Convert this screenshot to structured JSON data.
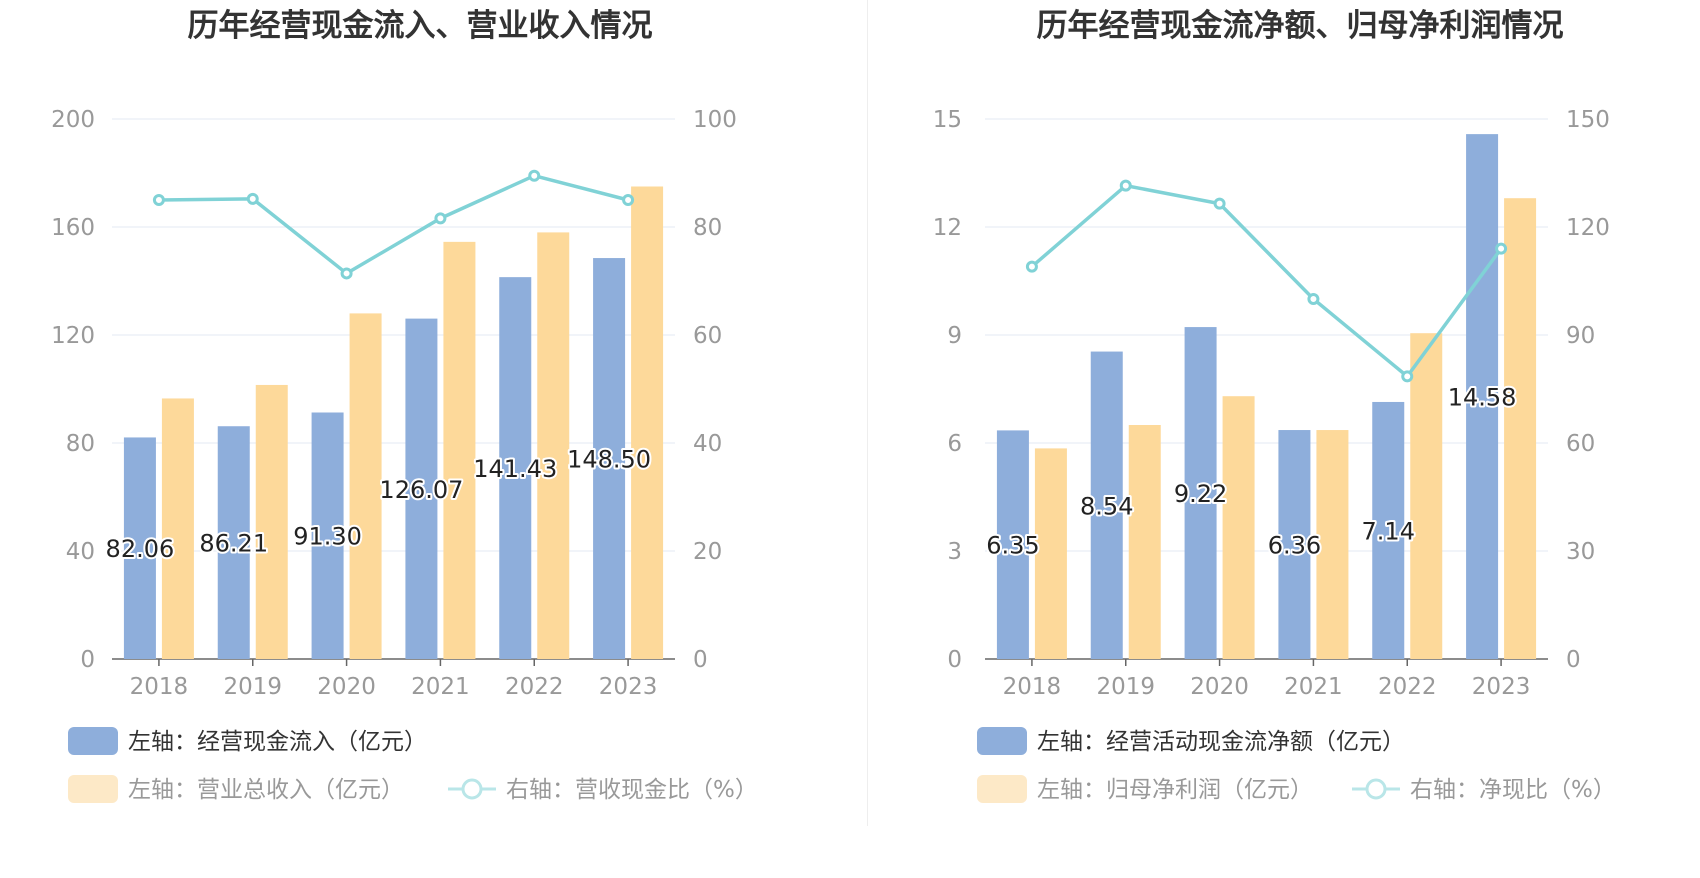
{
  "colors": {
    "bar_primary": "#8eaedb",
    "bar_secondary": "#fdd99a",
    "line": "#80d2d6",
    "title": "#333333",
    "axis_label": "#999999",
    "legend_active": "#333333",
    "legend_inactive": "#999999",
    "grid": "#e3e8f3",
    "legend_secondary_swatch": "#fde9c7"
  },
  "chart_data": [
    {
      "type": "bar",
      "title": "历年经营现金流入、营业收入情况",
      "categories": [
        "2018",
        "2019",
        "2020",
        "2021",
        "2022",
        "2023"
      ],
      "ylim_left": [
        0,
        200
      ],
      "ylim_right": [
        0,
        100
      ],
      "yticks_left": [
        "0",
        "40",
        "80",
        "120",
        "160",
        "200"
      ],
      "yticks_right": [
        "0",
        "20",
        "40",
        "60",
        "80",
        "100"
      ],
      "series": [
        {
          "name": "左轴：经营现金流入（亿元）",
          "kind": "bar",
          "axis": "left",
          "values": [
            82.06,
            86.21,
            91.3,
            126.07,
            141.43,
            148.5
          ],
          "labels": [
            "82.06",
            "86.21",
            "91.30",
            "126.07",
            "141.43",
            "148.50"
          ]
        },
        {
          "name": "左轴：营业总收入（亿元）",
          "kind": "bar",
          "axis": "left",
          "values": [
            96.5,
            101.5,
            128.0,
            154.5,
            158.0,
            175.0
          ]
        },
        {
          "name": "右轴：营收现金比（%）",
          "kind": "line",
          "axis": "right",
          "values": [
            85.0,
            85.2,
            71.4,
            81.6,
            89.5,
            85.0
          ]
        }
      ],
      "legend": {
        "row1": [
          "左轴：经营现金流入（亿元）"
        ],
        "row2": [
          "左轴：营业总收入（亿元）",
          "右轴：营收现金比（%）"
        ]
      }
    },
    {
      "type": "bar",
      "title": "历年经营现金流净额、归母净利润情况",
      "categories": [
        "2018",
        "2019",
        "2020",
        "2021",
        "2022",
        "2023"
      ],
      "ylim_left": [
        0,
        15
      ],
      "ylim_right": [
        0,
        150
      ],
      "yticks_left": [
        "0",
        "3",
        "6",
        "9",
        "12",
        "15"
      ],
      "yticks_right": [
        "0",
        "30",
        "60",
        "90",
        "120",
        "150"
      ],
      "series": [
        {
          "name": "左轴：经营活动现金流净额（亿元）",
          "kind": "bar",
          "axis": "left",
          "values": [
            6.35,
            8.54,
            9.22,
            6.36,
            7.14,
            14.58
          ],
          "labels": [
            "6.35",
            "8.54",
            "9.22",
            "6.36",
            "7.14",
            "14.58"
          ]
        },
        {
          "name": "左轴：归母净利润（亿元）",
          "kind": "bar",
          "axis": "left",
          "values": [
            5.85,
            6.5,
            7.3,
            6.36,
            9.05,
            12.8
          ]
        },
        {
          "name": "右轴：净现比（%）",
          "kind": "line",
          "axis": "right",
          "values": [
            109.0,
            131.5,
            126.5,
            100.0,
            78.5,
            114.0
          ]
        }
      ],
      "legend": {
        "row1": [
          "左轴：经营活动现金流净额（亿元）"
        ],
        "row2": [
          "左轴：归母净利润（亿元）",
          "右轴：净现比（%）"
        ]
      }
    }
  ]
}
